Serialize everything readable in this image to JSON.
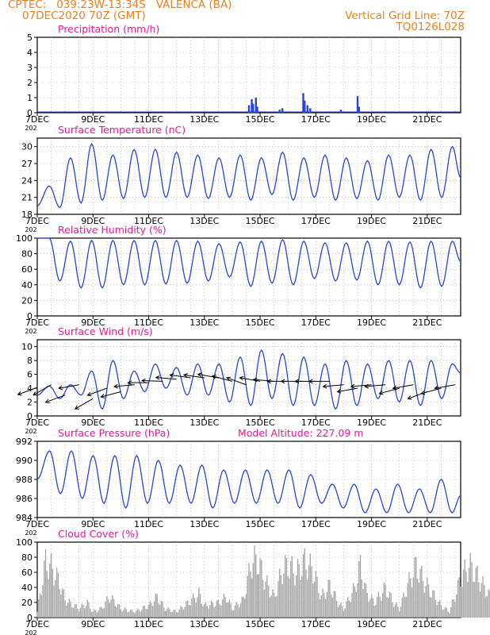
{
  "header": {
    "line1_left": "CPTEC:   039:23W-13:34S   VALENCA (BA)",
    "line2_left": "07DEC2020 70Z (GMT)",
    "line2_right": "Vertical Grid Line: 70Z",
    "line3_right": "TQ0126L028"
  },
  "x_ticks": [
    "7DEC",
    "9DEC",
    "11DEC",
    "13DEC",
    "15DEC",
    "17DEC",
    "19DEC",
    "21DEC"
  ],
  "x_tick_sublabel": "202",
  "colors": {
    "header": "#e8801e",
    "title": "#e8199a",
    "series": "#2b44d8",
    "arrow": "#000000",
    "cloud": "#a9a9a9",
    "grid": "#999999"
  },
  "chart_data": [
    {
      "id": "precipitation",
      "type": "bar",
      "title": "Precipitation (mm/h)",
      "ylim": [
        0,
        5
      ],
      "yticks": [
        "0",
        "1",
        "2",
        "3",
        "4",
        "5"
      ],
      "x_unit": "day offset from 7DEC 00Z",
      "bars": [
        {
          "x": 7.6,
          "y": 0.5
        },
        {
          "x": 7.7,
          "y": 0.9
        },
        {
          "x": 7.75,
          "y": 0.6
        },
        {
          "x": 7.85,
          "y": 1.0
        },
        {
          "x": 7.9,
          "y": 0.4
        },
        {
          "x": 8.7,
          "y": 0.2
        },
        {
          "x": 8.8,
          "y": 0.3
        },
        {
          "x": 9.55,
          "y": 1.3
        },
        {
          "x": 9.6,
          "y": 0.8
        },
        {
          "x": 9.7,
          "y": 0.5
        },
        {
          "x": 9.8,
          "y": 0.3
        },
        {
          "x": 10.9,
          "y": 0.2
        },
        {
          "x": 11.5,
          "y": 1.1
        },
        {
          "x": 11.55,
          "y": 0.4
        }
      ]
    },
    {
      "id": "temperature",
      "type": "line",
      "title": "Surface Temperature (nC)",
      "ylim": [
        18,
        31.5
      ],
      "yticks": [
        "18",
        "21",
        "24",
        "27",
        "30"
      ],
      "daily_max": [
        23,
        28,
        30.5,
        28.5,
        29.5,
        29.5,
        29,
        28.5,
        28,
        28.5,
        28,
        29,
        28,
        28.5,
        28,
        27.5,
        28.5,
        28.5,
        29.5,
        30
      ],
      "daily_min": [
        19.2,
        20,
        20.5,
        20.8,
        21,
        21,
        21,
        20.8,
        21,
        20.5,
        21.5,
        20.5,
        21,
        20.5,
        20.8,
        20.5,
        21,
        20.5,
        21
      ],
      "start_value": 19.5,
      "end_value": 24.5
    },
    {
      "id": "humidity",
      "type": "line",
      "title": "Relative Humidity (%)",
      "ylim": [
        0,
        100
      ],
      "yticks": [
        "0",
        "20",
        "40",
        "60",
        "80",
        "100"
      ],
      "daily_max": [
        100,
        96,
        97,
        97,
        97,
        97,
        97,
        96,
        93,
        95,
        96,
        98,
        96,
        94,
        94,
        96,
        96,
        95,
        96,
        96
      ],
      "daily_min": [
        45,
        36,
        36,
        40,
        40,
        41,
        42,
        45,
        50,
        38,
        42,
        40,
        48,
        45,
        46,
        40,
        40,
        36,
        38
      ],
      "start_value": 100,
      "end_value": 70
    },
    {
      "id": "wind",
      "type": "line",
      "title": "Surface Wind (m/s)",
      "ylim": [
        0,
        11
      ],
      "yticks": [
        "0",
        "2",
        "4",
        "6",
        "8",
        "10"
      ],
      "daily_max": [
        4.3,
        4.5,
        6.5,
        8,
        6.5,
        7.5,
        7,
        7.5,
        7.5,
        8.5,
        9.5,
        9,
        8.5,
        7.5,
        8,
        7.5,
        8,
        8,
        8,
        7.5
      ],
      "daily_min": [
        2.5,
        3,
        1,
        2.5,
        3.5,
        4,
        3,
        3,
        2,
        1.5,
        2.5,
        1.5,
        1.5,
        1,
        1.5,
        2.5,
        2,
        1.5,
        2.5
      ],
      "start_value": 3.0,
      "end_value": 6.2,
      "vectors": [
        {
          "x": 0.0,
          "y": 4.1,
          "dir": 200
        },
        {
          "x": 0.5,
          "y": 4.5,
          "dir": 210
        },
        {
          "x": 1.0,
          "y": 3.0,
          "dir": 200
        },
        {
          "x": 1.5,
          "y": 4.5,
          "dir": 190
        },
        {
          "x": 2.0,
          "y": 2.5,
          "dir": 210
        },
        {
          "x": 2.5,
          "y": 4.0,
          "dir": 200
        },
        {
          "x": 3.0,
          "y": 3.5,
          "dir": 195
        },
        {
          "x": 3.5,
          "y": 4.5,
          "dir": 185
        },
        {
          "x": 4.0,
          "y": 4.8,
          "dir": 180
        },
        {
          "x": 4.5,
          "y": 5.0,
          "dir": 178
        },
        {
          "x": 5.0,
          "y": 5.3,
          "dir": 175
        },
        {
          "x": 5.5,
          "y": 5.5,
          "dir": 172
        },
        {
          "x": 6.0,
          "y": 5.5,
          "dir": 172
        },
        {
          "x": 6.5,
          "y": 5.5,
          "dir": 170
        },
        {
          "x": 7.0,
          "y": 5.0,
          "dir": 165
        },
        {
          "x": 7.5,
          "y": 4.5,
          "dir": 160
        },
        {
          "x": 8.0,
          "y": 5.0,
          "dir": 170
        },
        {
          "x": 8.5,
          "y": 5.0,
          "dir": 175
        },
        {
          "x": 9.0,
          "y": 5.0,
          "dir": 180
        },
        {
          "x": 9.5,
          "y": 5.0,
          "dir": 180
        },
        {
          "x": 10.0,
          "y": 5.0,
          "dir": 180
        },
        {
          "x": 10.5,
          "y": 5.0,
          "dir": 180
        },
        {
          "x": 11.0,
          "y": 4.5,
          "dir": 185
        },
        {
          "x": 11.5,
          "y": 4.0,
          "dir": 190
        },
        {
          "x": 12.0,
          "y": 4.5,
          "dir": 185
        },
        {
          "x": 12.5,
          "y": 4.5,
          "dir": 185
        },
        {
          "x": 13.0,
          "y": 4.0,
          "dir": 195
        },
        {
          "x": 13.5,
          "y": 4.5,
          "dir": 190
        },
        {
          "x": 14.0,
          "y": 3.5,
          "dir": 200
        },
        {
          "x": 14.5,
          "y": 4.0,
          "dir": 195
        },
        {
          "x": 15.0,
          "y": 4.5,
          "dir": 190
        }
      ]
    },
    {
      "id": "pressure",
      "type": "line",
      "title": "Surface Pressure (hPa)",
      "annotation": "Model Altitude: 227.09 m",
      "ylim": [
        984,
        992
      ],
      "yticks": [
        "984",
        "986",
        "988",
        "990",
        "992"
      ],
      "daily_max": [
        991,
        991,
        990.5,
        990.5,
        990.5,
        990,
        989.5,
        989.5,
        989,
        989,
        989,
        989,
        988.5,
        987.5,
        987.5,
        987,
        987.5,
        987,
        988
      ],
      "daily_min": [
        986.5,
        986,
        985.5,
        985,
        985.5,
        985.5,
        985.5,
        985,
        985.5,
        985.5,
        985.5,
        985,
        985.5,
        985,
        984.5,
        984.5,
        984.5,
        984.5,
        984.5
      ],
      "start_value": 988,
      "end_value": 986.3
    },
    {
      "id": "cloud",
      "type": "bar",
      "title": "Cloud Cover (%)",
      "ylim": [
        0,
        100
      ],
      "yticks": [
        "0",
        "20",
        "40",
        "60",
        "80",
        "100"
      ],
      "envelope": [
        {
          "x": 0.0,
          "y": 10
        },
        {
          "x": 0.3,
          "y": 95
        },
        {
          "x": 0.5,
          "y": 85
        },
        {
          "x": 0.8,
          "y": 60
        },
        {
          "x": 1.0,
          "y": 30
        },
        {
          "x": 1.5,
          "y": 15
        },
        {
          "x": 1.8,
          "y": 25
        },
        {
          "x": 2.0,
          "y": 10
        },
        {
          "x": 2.3,
          "y": 15
        },
        {
          "x": 2.6,
          "y": 35
        },
        {
          "x": 2.8,
          "y": 25
        },
        {
          "x": 3.0,
          "y": 15
        },
        {
          "x": 3.5,
          "y": 10
        },
        {
          "x": 4.0,
          "y": 20
        },
        {
          "x": 4.3,
          "y": 35
        },
        {
          "x": 4.6,
          "y": 15
        },
        {
          "x": 5.0,
          "y": 10
        },
        {
          "x": 5.5,
          "y": 28
        },
        {
          "x": 5.8,
          "y": 40
        },
        {
          "x": 6.0,
          "y": 20
        },
        {
          "x": 6.5,
          "y": 25
        },
        {
          "x": 6.8,
          "y": 35
        },
        {
          "x": 7.0,
          "y": 15
        },
        {
          "x": 7.4,
          "y": 30
        },
        {
          "x": 7.7,
          "y": 95
        },
        {
          "x": 7.9,
          "y": 98
        },
        {
          "x": 8.2,
          "y": 60
        },
        {
          "x": 8.5,
          "y": 35
        },
        {
          "x": 8.8,
          "y": 80
        },
        {
          "x": 9.0,
          "y": 90
        },
        {
          "x": 9.3,
          "y": 75
        },
        {
          "x": 9.6,
          "y": 95
        },
        {
          "x": 9.9,
          "y": 80
        },
        {
          "x": 10.2,
          "y": 35
        },
        {
          "x": 10.5,
          "y": 55
        },
        {
          "x": 10.8,
          "y": 25
        },
        {
          "x": 11.0,
          "y": 15
        },
        {
          "x": 11.4,
          "y": 50
        },
        {
          "x": 11.6,
          "y": 88
        },
        {
          "x": 11.8,
          "y": 45
        },
        {
          "x": 12.1,
          "y": 25
        },
        {
          "x": 12.5,
          "y": 50
        },
        {
          "x": 12.8,
          "y": 25
        },
        {
          "x": 13.0,
          "y": 15
        },
        {
          "x": 13.3,
          "y": 55
        },
        {
          "x": 13.6,
          "y": 88
        },
        {
          "x": 13.9,
          "y": 60
        },
        {
          "x": 14.2,
          "y": 40
        },
        {
          "x": 14.5,
          "y": 20
        },
        {
          "x": 14.8,
          "y": 10
        },
        {
          "x": 15.2,
          "y": 65
        },
        {
          "x": 15.5,
          "y": 90
        },
        {
          "x": 15.8,
          "y": 70
        },
        {
          "x": 16.2,
          "y": 40
        },
        {
          "x": 16.6,
          "y": 20
        },
        {
          "x": 16.9,
          "y": 10
        }
      ]
    }
  ]
}
